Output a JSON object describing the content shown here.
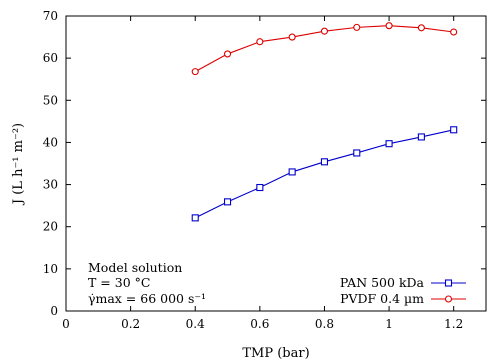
{
  "chart_data": {
    "type": "line",
    "xlabel": "TMP (bar)",
    "ylabel": "J (L h⁻¹ m⁻²)",
    "xlim": [
      0,
      1.3
    ],
    "ylim": [
      0,
      70
    ],
    "xticks": [
      0,
      0.2,
      0.4,
      0.6,
      0.8,
      1,
      1.2
    ],
    "yticks": [
      0,
      10,
      20,
      30,
      40,
      50,
      60,
      70
    ],
    "grid": false,
    "legend_position": "bottom-right",
    "series": [
      {
        "name": "PAN 500 kDa",
        "color": "#0000cc",
        "marker": "square",
        "x": [
          0.4,
          0.5,
          0.6,
          0.7,
          0.8,
          0.9,
          1.0,
          1.1,
          1.2
        ],
        "y": [
          22.1,
          25.9,
          29.3,
          33.0,
          35.4,
          37.5,
          39.7,
          41.3,
          43.0
        ]
      },
      {
        "name": "PVDF 0.4 µm",
        "color": "#dd0000",
        "marker": "circle",
        "x": [
          0.4,
          0.5,
          0.6,
          0.7,
          0.8,
          0.9,
          1.0,
          1.1,
          1.2
        ],
        "y": [
          56.8,
          61.0,
          63.9,
          65.0,
          66.4,
          67.3,
          67.7,
          67.2,
          66.2
        ]
      }
    ],
    "annotations": [
      "Model solution",
      "T = 30 °C",
      "γ̇max = 66 000 s⁻¹"
    ]
  }
}
